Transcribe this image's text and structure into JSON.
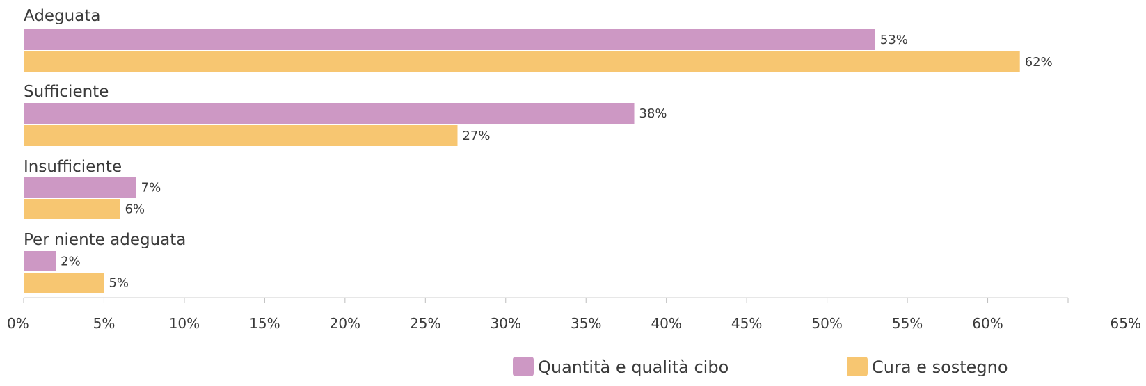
{
  "chart_data": {
    "type": "bar",
    "orientation": "horizontal",
    "categories": [
      "Adeguata",
      "Sufficiente",
      "Insufficiente",
      "Per niente adeguata"
    ],
    "series": [
      {
        "name": "Quantità e qualità cibo",
        "values": [
          53,
          38,
          7,
          2
        ],
        "labels": [
          "53%",
          "38%",
          "7%",
          "2%"
        ],
        "color": "#cd98c4"
      },
      {
        "name": "Cura e sostegno",
        "values": [
          62,
          27,
          6,
          5
        ],
        "labels": [
          "62%",
          "27%",
          "6%",
          "5%"
        ],
        "color": "#f7c671"
      }
    ],
    "xlim": [
      0,
      65
    ],
    "x_ticks": [
      0,
      5,
      10,
      15,
      20,
      25,
      30,
      35,
      40,
      45,
      50,
      55,
      60,
      65
    ],
    "x_tick_labels": [
      "0%",
      "5%",
      "10%",
      "15%",
      "20%",
      "25%",
      "30%",
      "35%",
      "40%",
      "45%",
      "50%",
      "55%",
      "60%",
      "65%"
    ],
    "grid": false,
    "legend_position": "bottom-right",
    "title": "",
    "xlabel": "",
    "ylabel": ""
  }
}
